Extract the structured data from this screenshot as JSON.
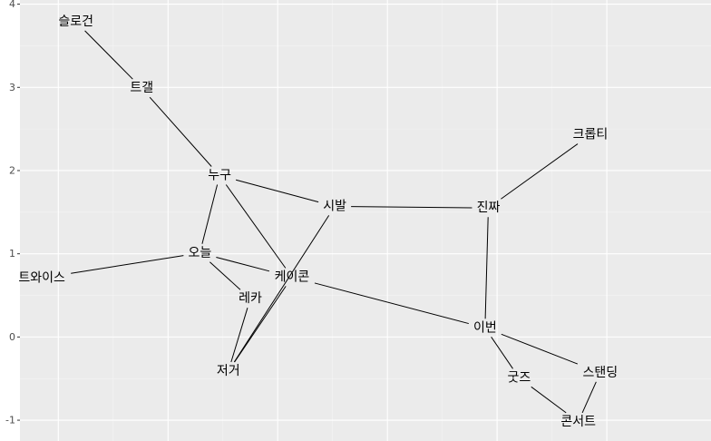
{
  "chart_data": {
    "type": "network",
    "title": "",
    "xlabel": "",
    "ylabel": "",
    "ylim": [
      -1.25,
      4.05
    ],
    "xlim": [
      -0.35,
      5.95
    ],
    "y_ticks": [
      "-1",
      "0",
      "1",
      "2",
      "3",
      "4"
    ],
    "y_tick_values": [
      -1,
      0,
      1,
      2,
      3,
      4
    ],
    "x_grid_major": [
      0,
      1,
      2,
      3,
      4,
      5
    ],
    "grid": true,
    "nodes": [
      {
        "id": "slogan",
        "label": "슬로건",
        "x": 0.16,
        "y": 3.79
      },
      {
        "id": "tgael",
        "label": "트갤",
        "x": 0.76,
        "y": 2.99
      },
      {
        "id": "nugu",
        "label": "누구",
        "x": 1.47,
        "y": 1.94
      },
      {
        "id": "sibal",
        "label": "시발",
        "x": 2.52,
        "y": 1.57
      },
      {
        "id": "jinjja",
        "label": "진짜",
        "x": 3.92,
        "y": 1.55
      },
      {
        "id": "krotti",
        "label": "크롭티",
        "x": 4.85,
        "y": 2.43
      },
      {
        "id": "oneul",
        "label": "오늘",
        "x": 1.29,
        "y": 1.01
      },
      {
        "id": "twice",
        "label": "트와이스",
        "x": -0.15,
        "y": 0.71
      },
      {
        "id": "keicon",
        "label": "케이콘",
        "x": 2.13,
        "y": 0.72
      },
      {
        "id": "reka",
        "label": "레카",
        "x": 1.75,
        "y": 0.46
      },
      {
        "id": "jeoge",
        "label": "저거",
        "x": 1.55,
        "y": -0.41
      },
      {
        "id": "ibeon",
        "label": "이번",
        "x": 3.89,
        "y": 0.11
      },
      {
        "id": "gutjeu",
        "label": "굿즈",
        "x": 4.2,
        "y": -0.49
      },
      {
        "id": "standing",
        "label": "스탠딩",
        "x": 4.94,
        "y": -0.43
      },
      {
        "id": "concert",
        "label": "콘서트",
        "x": 4.74,
        "y": -1.02
      }
    ],
    "edges": [
      [
        "slogan",
        "tgael"
      ],
      [
        "tgael",
        "nugu"
      ],
      [
        "nugu",
        "sibal"
      ],
      [
        "nugu",
        "oneul"
      ],
      [
        "nugu",
        "keicon"
      ],
      [
        "sibal",
        "jinjja"
      ],
      [
        "sibal",
        "jeoge"
      ],
      [
        "jinjja",
        "krotti"
      ],
      [
        "jinjja",
        "ibeon"
      ],
      [
        "oneul",
        "twice"
      ],
      [
        "oneul",
        "reka"
      ],
      [
        "oneul",
        "keicon"
      ],
      [
        "keicon",
        "ibeon"
      ],
      [
        "keicon",
        "jeoge"
      ],
      [
        "reka",
        "jeoge"
      ],
      [
        "ibeon",
        "gutjeu"
      ],
      [
        "ibeon",
        "standing"
      ],
      [
        "gutjeu",
        "concert"
      ],
      [
        "standing",
        "concert"
      ]
    ]
  }
}
